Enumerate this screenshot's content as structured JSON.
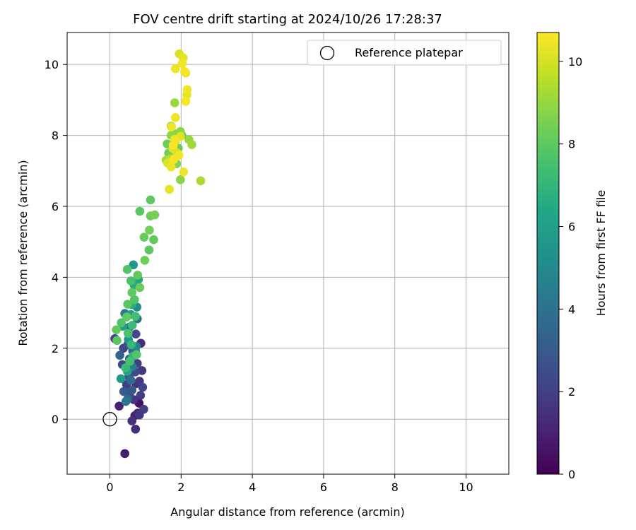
{
  "chart_data": {
    "type": "scatter",
    "title": "FOV centre drift starting at 2024/10/26 17:28:37",
    "xlabel": "Angular distance from reference (arcmin)",
    "ylabel": "Rotation from reference (arcmin)",
    "xlim": [
      -1.2,
      11.2
    ],
    "ylim": [
      -1.55,
      10.9
    ],
    "xticks": [
      0,
      2,
      4,
      6,
      8,
      10
    ],
    "yticks": [
      0,
      2,
      4,
      6,
      8,
      10
    ],
    "grid": true,
    "colormap": "viridis",
    "colorbar": {
      "label": "Hours from first FF file",
      "range": [
        0,
        10.7
      ],
      "ticks": [
        0,
        2,
        4,
        6,
        8,
        10
      ]
    },
    "legend": {
      "placement": "top-right",
      "entries": [
        "Reference platepar"
      ]
    },
    "reference_point": {
      "x": 0,
      "y": 0,
      "label": "Reference platepar"
    },
    "points": [
      {
        "x": 0.42,
        "y": -0.97,
        "h": 0.8
      },
      {
        "x": 0.26,
        "y": 0.37,
        "h": 1.0
      },
      {
        "x": 0.72,
        "y": -0.28,
        "h": 1.3
      },
      {
        "x": 0.62,
        "y": -0.05,
        "h": 1.5
      },
      {
        "x": 0.78,
        "y": 0.17,
        "h": 1.2
      },
      {
        "x": 0.95,
        "y": 0.28,
        "h": 2.0
      },
      {
        "x": 0.82,
        "y": 0.45,
        "h": 0.5
      },
      {
        "x": 0.67,
        "y": 0.55,
        "h": 1.6
      },
      {
        "x": 0.86,
        "y": 0.67,
        "h": 1.9
      },
      {
        "x": 0.92,
        "y": 0.9,
        "h": 2.2
      },
      {
        "x": 0.9,
        "y": 1.37,
        "h": 1.8
      },
      {
        "x": 0.71,
        "y": 1.33,
        "h": 2.4
      },
      {
        "x": 0.53,
        "y": 1.2,
        "h": 2.7
      },
      {
        "x": 0.47,
        "y": 0.98,
        "h": 2.0
      },
      {
        "x": 0.39,
        "y": 0.78,
        "h": 3.0
      },
      {
        "x": 0.5,
        "y": 0.57,
        "h": 3.5
      },
      {
        "x": 0.62,
        "y": 0.82,
        "h": 2.9
      },
      {
        "x": 0.59,
        "y": 1.1,
        "h": 3.8
      },
      {
        "x": 0.73,
        "y": 1.0,
        "h": 1.5
      },
      {
        "x": 0.83,
        "y": 1.07,
        "h": 1.7
      },
      {
        "x": 0.35,
        "y": 1.54,
        "h": 2.5
      },
      {
        "x": 0.55,
        "y": 1.7,
        "h": 2.8
      },
      {
        "x": 0.64,
        "y": 1.92,
        "h": 3.3
      },
      {
        "x": 0.77,
        "y": 1.57,
        "h": 1.9
      },
      {
        "x": 0.5,
        "y": 2.1,
        "h": 2.6
      },
      {
        "x": 0.38,
        "y": 2.0,
        "h": 2.2
      },
      {
        "x": 0.14,
        "y": 2.27,
        "h": 2.1
      },
      {
        "x": 0.87,
        "y": 2.14,
        "h": 1.4
      },
      {
        "x": 0.73,
        "y": 2.4,
        "h": 2.3
      },
      {
        "x": 0.56,
        "y": 2.6,
        "h": 3.6
      },
      {
        "x": 0.77,
        "y": 2.83,
        "h": 3.9
      },
      {
        "x": 0.76,
        "y": 3.16,
        "h": 5.2
      },
      {
        "x": 0.42,
        "y": 2.98,
        "h": 4.4
      },
      {
        "x": 0.7,
        "y": 0.1,
        "h": 0.9
      },
      {
        "x": 0.45,
        "y": 0.5,
        "h": 4.2
      },
      {
        "x": 0.31,
        "y": 1.14,
        "h": 5.8
      },
      {
        "x": 0.63,
        "y": 1.48,
        "h": 4.6
      },
      {
        "x": 0.72,
        "y": 1.92,
        "h": 4.0
      },
      {
        "x": 0.83,
        "y": 0.12,
        "h": 1.7
      },
      {
        "x": 0.49,
        "y": 1.35,
        "h": 6.3
      },
      {
        "x": 0.64,
        "y": 1.77,
        "h": 6.9
      },
      {
        "x": 0.74,
        "y": 2.05,
        "h": 4.8
      },
      {
        "x": 0.52,
        "y": 2.25,
        "h": 5.5
      },
      {
        "x": 0.36,
        "y": 2.62,
        "h": 6.1
      },
      {
        "x": 0.59,
        "y": 2.95,
        "h": 5.9
      },
      {
        "x": 0.66,
        "y": 4.35,
        "h": 5.6
      },
      {
        "x": 0.8,
        "y": 3.94,
        "h": 6.2
      },
      {
        "x": 0.68,
        "y": 3.78,
        "h": 6.5
      },
      {
        "x": 0.61,
        "y": 3.23,
        "h": 6.7
      },
      {
        "x": 0.28,
        "y": 1.8,
        "h": 3.2
      },
      {
        "x": 0.55,
        "y": 0.7,
        "h": 2.4
      },
      {
        "x": 0.44,
        "y": 1.45,
        "h": 7.2
      },
      {
        "x": 0.56,
        "y": 1.63,
        "h": 7.5
      },
      {
        "x": 0.75,
        "y": 1.82,
        "h": 7.8
      },
      {
        "x": 0.6,
        "y": 2.1,
        "h": 7.1
      },
      {
        "x": 0.51,
        "y": 2.42,
        "h": 7.6
      },
      {
        "x": 0.2,
        "y": 2.22,
        "h": 7.9
      },
      {
        "x": 0.18,
        "y": 2.52,
        "h": 8.1
      },
      {
        "x": 0.32,
        "y": 2.72,
        "h": 7.7
      },
      {
        "x": 0.47,
        "y": 2.88,
        "h": 8.0
      },
      {
        "x": 0.63,
        "y": 2.65,
        "h": 7.3
      },
      {
        "x": 0.72,
        "y": 2.9,
        "h": 7.4
      },
      {
        "x": 0.69,
        "y": 3.37,
        "h": 7.8
      },
      {
        "x": 0.5,
        "y": 3.24,
        "h": 7.9
      },
      {
        "x": 0.62,
        "y": 3.57,
        "h": 8.0
      },
      {
        "x": 0.59,
        "y": 3.9,
        "h": 7.6
      },
      {
        "x": 0.84,
        "y": 3.71,
        "h": 8.2
      },
      {
        "x": 0.78,
        "y": 4.06,
        "h": 8.1
      },
      {
        "x": 0.49,
        "y": 4.22,
        "h": 7.7
      },
      {
        "x": 0.98,
        "y": 4.48,
        "h": 8.3
      },
      {
        "x": 1.1,
        "y": 4.77,
        "h": 8.0
      },
      {
        "x": 0.96,
        "y": 5.13,
        "h": 8.2
      },
      {
        "x": 1.11,
        "y": 5.33,
        "h": 8.4
      },
      {
        "x": 1.23,
        "y": 5.06,
        "h": 8.1
      },
      {
        "x": 1.14,
        "y": 5.73,
        "h": 8.3
      },
      {
        "x": 1.26,
        "y": 5.76,
        "h": 8.5
      },
      {
        "x": 0.84,
        "y": 5.86,
        "h": 7.9
      },
      {
        "x": 1.14,
        "y": 6.18,
        "h": 8.0
      },
      {
        "x": 1.61,
        "y": 7.76,
        "h": 8.3
      },
      {
        "x": 1.72,
        "y": 8.26,
        "h": 8.6
      },
      {
        "x": 1.79,
        "y": 8.06,
        "h": 8.7
      },
      {
        "x": 1.65,
        "y": 7.5,
        "h": 8.4
      },
      {
        "x": 1.92,
        "y": 7.64,
        "h": 8.2
      },
      {
        "x": 2.02,
        "y": 8.0,
        "h": 8.1
      },
      {
        "x": 1.77,
        "y": 7.62,
        "h": 8.5
      },
      {
        "x": 1.82,
        "y": 8.92,
        "h": 9.1
      },
      {
        "x": 1.98,
        "y": 8.11,
        "h": 8.9
      },
      {
        "x": 2.22,
        "y": 7.88,
        "h": 9.0
      },
      {
        "x": 2.3,
        "y": 7.74,
        "h": 9.2
      },
      {
        "x": 1.87,
        "y": 7.2,
        "h": 8.6
      },
      {
        "x": 1.98,
        "y": 6.75,
        "h": 8.8
      },
      {
        "x": 2.55,
        "y": 6.72,
        "h": 9.3
      },
      {
        "x": 1.72,
        "y": 8.0,
        "h": 8.9
      },
      {
        "x": 1.58,
        "y": 7.3,
        "h": 9.1
      },
      {
        "x": 1.7,
        "y": 7.34,
        "h": 9.4
      },
      {
        "x": 1.67,
        "y": 6.48,
        "h": 10.3
      },
      {
        "x": 2.07,
        "y": 6.97,
        "h": 10.5
      },
      {
        "x": 1.62,
        "y": 7.22,
        "h": 10.1
      },
      {
        "x": 1.72,
        "y": 7.11,
        "h": 10.4
      },
      {
        "x": 1.79,
        "y": 7.32,
        "h": 10.6
      },
      {
        "x": 1.77,
        "y": 7.63,
        "h": 10.2
      },
      {
        "x": 1.88,
        "y": 7.51,
        "h": 10.0
      },
      {
        "x": 1.94,
        "y": 7.44,
        "h": 10.5
      },
      {
        "x": 1.84,
        "y": 7.84,
        "h": 10.3
      },
      {
        "x": 1.78,
        "y": 7.73,
        "h": 10.6
      },
      {
        "x": 1.82,
        "y": 7.89,
        "h": 10.4
      },
      {
        "x": 1.98,
        "y": 7.97,
        "h": 10.2
      },
      {
        "x": 1.73,
        "y": 8.24,
        "h": 10.5
      },
      {
        "x": 1.84,
        "y": 8.5,
        "h": 10.4
      },
      {
        "x": 2.13,
        "y": 8.96,
        "h": 10.6
      },
      {
        "x": 2.16,
        "y": 9.14,
        "h": 10.3
      },
      {
        "x": 2.17,
        "y": 9.29,
        "h": 10.5
      },
      {
        "x": 1.84,
        "y": 9.88,
        "h": 10.4
      },
      {
        "x": 2.1,
        "y": 9.8,
        "h": 10.6
      },
      {
        "x": 2.13,
        "y": 9.76,
        "h": 10.2
      },
      {
        "x": 2.03,
        "y": 10.03,
        "h": 10.5
      },
      {
        "x": 2.06,
        "y": 10.19,
        "h": 10.3
      },
      {
        "x": 1.95,
        "y": 10.3,
        "h": 10.1
      }
    ]
  }
}
